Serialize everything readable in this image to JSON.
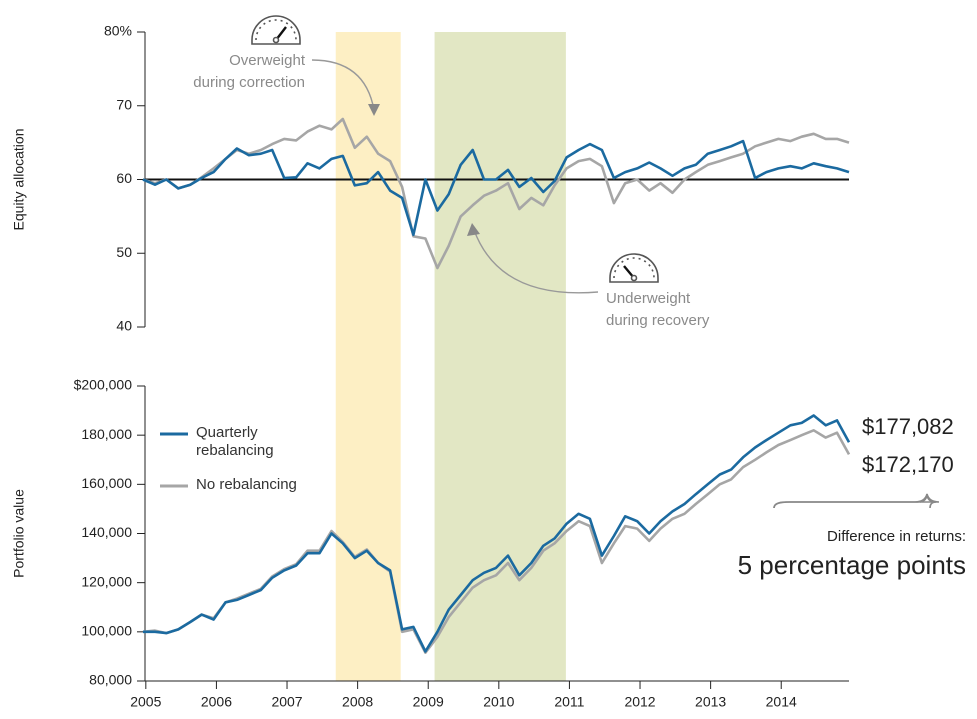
{
  "chart_data": [
    {
      "type": "line",
      "ylabel": "Equity allocation",
      "xlim": [
        2004.96,
        2014.96
      ],
      "ylim": [
        40,
        80
      ],
      "yticks": [
        40,
        50,
        60,
        70,
        {
          "value": 80,
          "label": "80%"
        }
      ],
      "reference_line": 60,
      "shaded": [
        {
          "x": [
            2007.69,
            2008.61
          ],
          "color": "#fdefc4"
        },
        {
          "x": [
            2009.09,
            2010.95
          ],
          "color": "#e2e7c4"
        }
      ],
      "annotations": [
        "Overweight during correction",
        "Underweight during recovery"
      ],
      "x": [
        2004.96,
        2005.13,
        2005.29,
        2005.46,
        2005.63,
        2005.79,
        2005.96,
        2006.13,
        2006.29,
        2006.46,
        2006.63,
        2006.79,
        2006.96,
        2007.13,
        2007.29,
        2007.46,
        2007.63,
        2007.79,
        2007.96,
        2008.13,
        2008.29,
        2008.46,
        2008.63,
        2008.79,
        2008.96,
        2009.13,
        2009.29,
        2009.46,
        2009.63,
        2009.79,
        2009.96,
        2010.13,
        2010.29,
        2010.46,
        2010.63,
        2010.79,
        2010.96,
        2011.13,
        2011.29,
        2011.46,
        2011.63,
        2011.79,
        2011.96,
        2012.13,
        2012.29,
        2012.46,
        2012.63,
        2012.79,
        2012.96,
        2013.13,
        2013.29,
        2013.46,
        2013.63,
        2013.79,
        2013.96,
        2014.13,
        2014.29,
        2014.46,
        2014.63,
        2014.79,
        2014.96
      ],
      "series": [
        {
          "name": "No rebalancing",
          "color": "#a6a6a6",
          "values": [
            60,
            59.5,
            60,
            58.8,
            59.3,
            60.3,
            61.5,
            62.8,
            64,
            63.5,
            64,
            64.8,
            65.5,
            65.3,
            66.5,
            67.3,
            66.8,
            68.2,
            64.3,
            65.8,
            63.5,
            62.5,
            59,
            52.3,
            52,
            48,
            51,
            55,
            56.5,
            57.8,
            58.5,
            59.5,
            56,
            57.5,
            56.5,
            59.2,
            61.5,
            62.5,
            62.8,
            61.8,
            56.8,
            59.5,
            60,
            58.5,
            59.5,
            58.2,
            60,
            61,
            62,
            62.5,
            63,
            63.5,
            64.5,
            65,
            65.5,
            65.2,
            65.8,
            66.2,
            65.5,
            65.5,
            65
          ]
        },
        {
          "name": "Quarterly rebalancing",
          "color": "#1b6aa0",
          "values": [
            60,
            59.3,
            60,
            58.8,
            59.3,
            60.2,
            61,
            62.8,
            64.2,
            63.3,
            63.5,
            64,
            60.2,
            60.3,
            62.2,
            61.5,
            62.8,
            63.2,
            59.2,
            59.5,
            61,
            58.5,
            57.5,
            52.5,
            60,
            55.8,
            58,
            62,
            64,
            60,
            60,
            61.3,
            59,
            60.2,
            58.3,
            59.8,
            63,
            64,
            64.8,
            64,
            60.2,
            61,
            61.5,
            62.3,
            61.5,
            60.5,
            61.5,
            62,
            63.5,
            64,
            64.5,
            65.2,
            60.2,
            61,
            61.5,
            61.8,
            61.5,
            62.2,
            61.8,
            61.5,
            61
          ]
        }
      ]
    },
    {
      "type": "line",
      "ylabel": "Portfolio value",
      "xlim": [
        2004.96,
        2014.96
      ],
      "ylim": [
        80000,
        200000
      ],
      "xticks": [
        2005,
        2006,
        2007,
        2008,
        2009,
        2010,
        2011,
        2012,
        2013,
        2014
      ],
      "yticks": [
        {
          "value": 80000,
          "label": "80,000"
        },
        {
          "value": 100000,
          "label": "100,000"
        },
        {
          "value": 120000,
          "label": "120,000"
        },
        {
          "value": 140000,
          "label": "140,000"
        },
        {
          "value": 160000,
          "label": "160,000"
        },
        {
          "value": 180000,
          "label": "180,000"
        },
        {
          "value": 200000,
          "label": "$200,000"
        }
      ],
      "annotations": [
        "Difference in returns:",
        "5 percentage points"
      ],
      "x": [
        2004.96,
        2005.13,
        2005.29,
        2005.46,
        2005.63,
        2005.79,
        2005.96,
        2006.13,
        2006.29,
        2006.46,
        2006.63,
        2006.79,
        2006.96,
        2007.13,
        2007.29,
        2007.46,
        2007.63,
        2007.79,
        2007.96,
        2008.13,
        2008.29,
        2008.46,
        2008.63,
        2008.79,
        2008.96,
        2009.13,
        2009.29,
        2009.46,
        2009.63,
        2009.79,
        2009.96,
        2010.13,
        2010.29,
        2010.46,
        2010.63,
        2010.79,
        2010.96,
        2011.13,
        2011.29,
        2011.46,
        2011.63,
        2011.79,
        2011.96,
        2012.13,
        2012.29,
        2012.46,
        2012.63,
        2012.79,
        2012.96,
        2013.13,
        2013.29,
        2013.46,
        2013.63,
        2013.79,
        2013.96,
        2014.13,
        2014.29,
        2014.46,
        2014.63,
        2014.79,
        2014.96
      ],
      "series": [
        {
          "name": "No rebalancing",
          "color": "#a6a6a6",
          "end_label": "$172,170",
          "values": [
            100000,
            100500,
            99500,
            101000,
            104000,
            107000,
            105500,
            112000,
            113500,
            115500,
            117500,
            122500,
            125500,
            127500,
            133000,
            133000,
            141000,
            136500,
            130500,
            133500,
            128000,
            124500,
            100000,
            101000,
            91500,
            98000,
            106000,
            112000,
            118000,
            121000,
            123000,
            128000,
            121000,
            126000,
            133000,
            136000,
            141000,
            145000,
            143000,
            128000,
            136000,
            143000,
            142000,
            137000,
            142000,
            146000,
            148000,
            152000,
            156000,
            160000,
            162000,
            167000,
            170000,
            173000,
            176000,
            178000,
            180000,
            182000,
            179000,
            181000,
            172170
          ]
        },
        {
          "name": "Quarterly rebalancing",
          "color": "#1b6aa0",
          "end_label": "$177,082",
          "values": [
            100000,
            100000,
            99500,
            101000,
            104000,
            107000,
            105000,
            112000,
            113000,
            115000,
            117000,
            122000,
            125000,
            127000,
            132000,
            132000,
            140000,
            136000,
            130000,
            133000,
            128000,
            125000,
            101000,
            102000,
            92000,
            100000,
            109000,
            115000,
            121000,
            124000,
            126000,
            131000,
            123000,
            128000,
            135000,
            138000,
            144000,
            148000,
            146000,
            131000,
            139000,
            147000,
            145000,
            140000,
            145000,
            149000,
            152000,
            156000,
            160000,
            164000,
            166000,
            171000,
            175000,
            178000,
            181000,
            184000,
            185000,
            188000,
            184000,
            186000,
            177082
          ]
        }
      ]
    }
  ]
}
